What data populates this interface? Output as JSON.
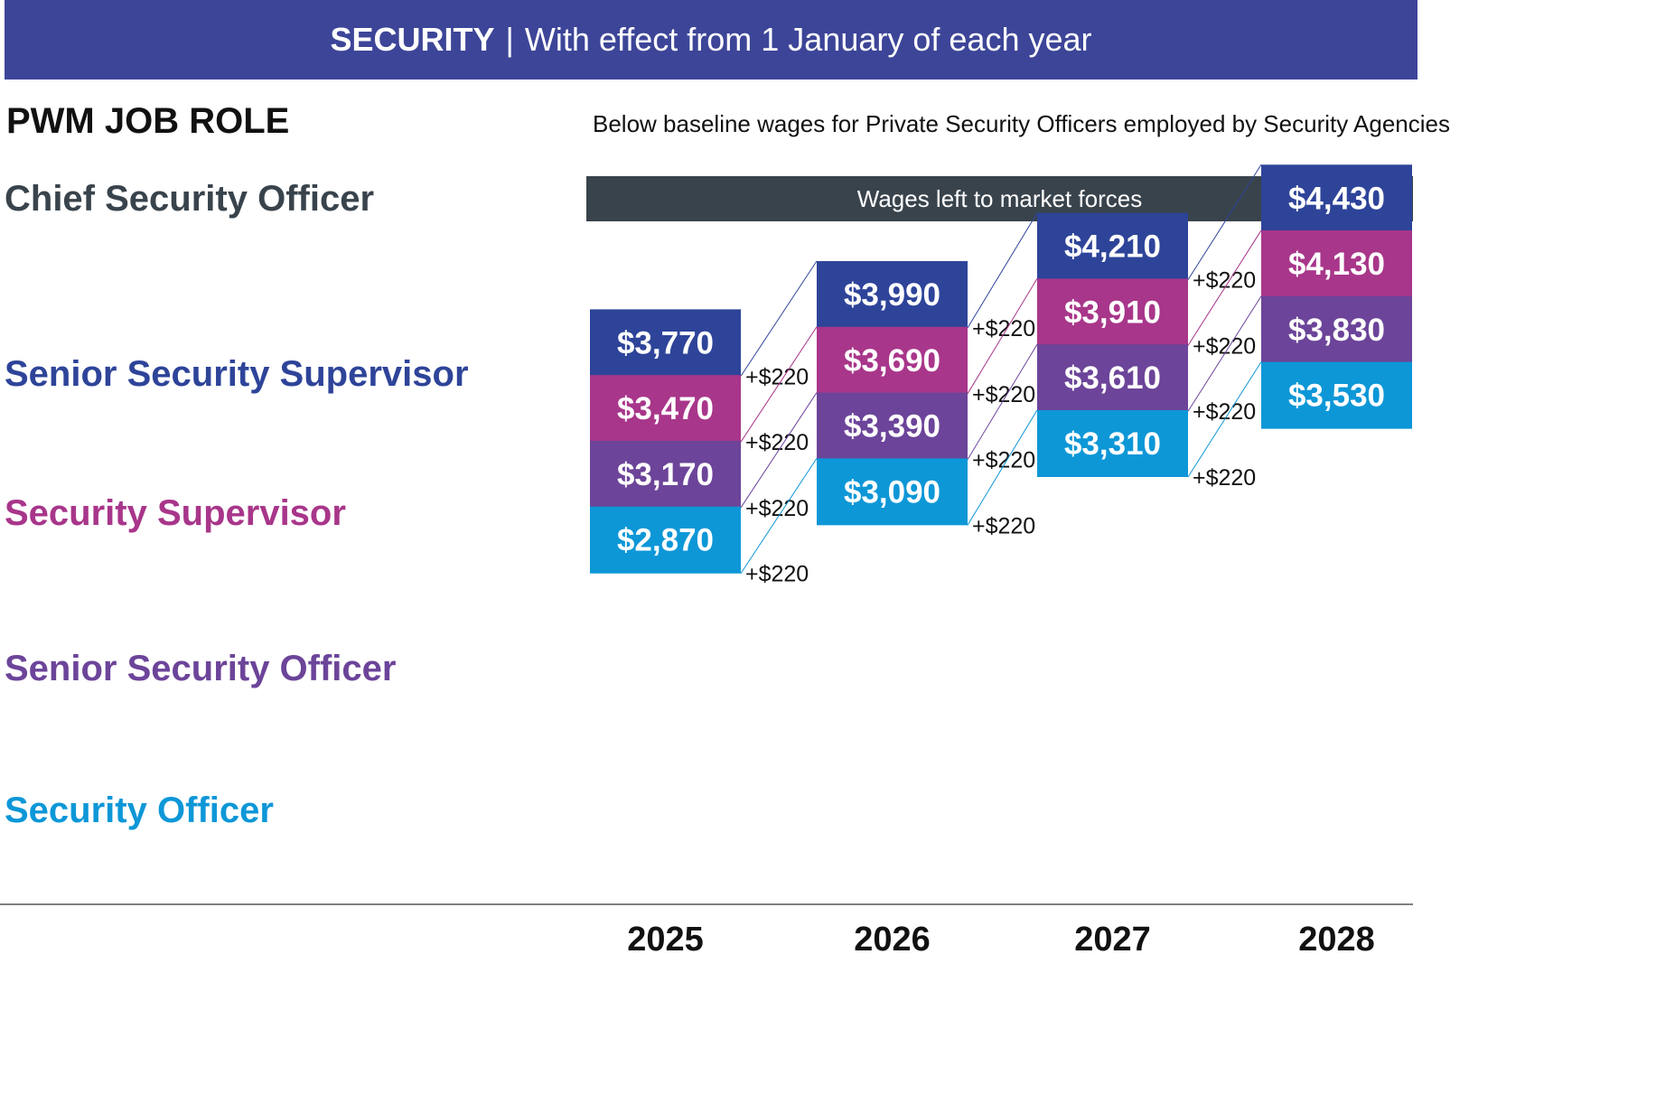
{
  "banner": {
    "title_bold": "SECURITY",
    "separator": "|",
    "title_rest": "With effect from 1 January of each year"
  },
  "header": {
    "role_column": "PWM JOB ROLE",
    "subtitle": "Below baseline wages for Private Security Officers employed by Security Agencies"
  },
  "chief": {
    "label": "Chief Security Officer",
    "note": "Wages left to market forces"
  },
  "colors": {
    "banner": "#3d4598",
    "market_bar": "#39434c",
    "chief": "#39434c",
    "senior_supervisor": "#2e4499",
    "supervisor": "#a8368a",
    "senior_officer": "#6c4499",
    "officer": "#0d97d7"
  },
  "chart_data": {
    "type": "line",
    "categories": [
      "2025",
      "2026",
      "2027",
      "2028"
    ],
    "increment_label": "+$220",
    "series": [
      {
        "name": "Senior Security Supervisor",
        "key": "senior_supervisor",
        "color": "#2e4499",
        "values": [
          3770,
          3990,
          4210,
          4430
        ],
        "labels": [
          "$3,770",
          "$3,990",
          "$4,210",
          "$4,430"
        ]
      },
      {
        "name": "Security Supervisor",
        "key": "supervisor",
        "color": "#a8368a",
        "values": [
          3470,
          3690,
          3910,
          4130
        ],
        "labels": [
          "$3,470",
          "$3,690",
          "$3,910",
          "$4,130"
        ]
      },
      {
        "name": "Senior Security Officer",
        "key": "senior_officer",
        "color": "#6c4499",
        "values": [
          3170,
          3390,
          3610,
          3830
        ],
        "labels": [
          "$3,170",
          "$3,390",
          "$3,610",
          "$3,830"
        ]
      },
      {
        "name": "Security Officer",
        "key": "officer",
        "color": "#0d97d7",
        "values": [
          2870,
          3090,
          3310,
          3530
        ],
        "labels": [
          "$2,870",
          "$3,090",
          "$3,310",
          "$3,530"
        ]
      }
    ]
  }
}
